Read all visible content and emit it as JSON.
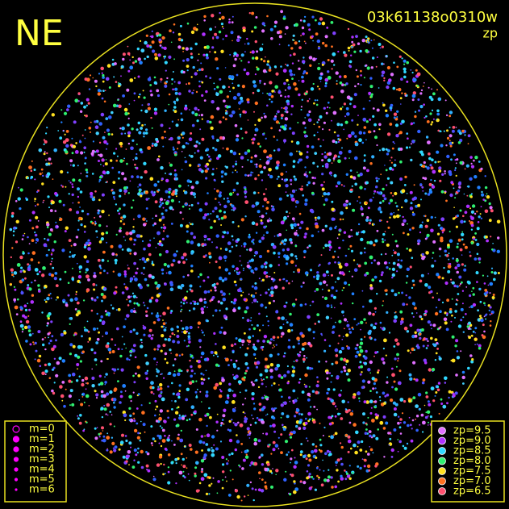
{
  "header": {
    "title": "NE",
    "image_id": "03k61138o0310w",
    "mode": "zp"
  },
  "magnitude_legend": {
    "items": [
      {
        "label": "m=0",
        "radius": 4
      },
      {
        "label": "m=1",
        "radius": 3.5
      },
      {
        "label": "m=2",
        "radius": 3
      },
      {
        "label": "m=3",
        "radius": 2.5
      },
      {
        "label": "m=4",
        "radius": 2
      },
      {
        "label": "m=5",
        "radius": 1.5
      },
      {
        "label": "m=6",
        "radius": 1
      }
    ],
    "color": "#ff00ff"
  },
  "zp_legend": {
    "items": [
      {
        "label": "zp=9.5",
        "color": "#e070ff"
      },
      {
        "label": "zp=9.0",
        "color": "#b030ff"
      },
      {
        "label": "zp=8.5",
        "color": "#30d8ff"
      },
      {
        "label": "zp=8.0",
        "color": "#30f070"
      },
      {
        "label": "zp=7.5",
        "color": "#ffe020"
      },
      {
        "label": "zp=7.0",
        "color": "#ff7020"
      },
      {
        "label": "zp=6.5",
        "color": "#ff5070"
      }
    ]
  }
}
